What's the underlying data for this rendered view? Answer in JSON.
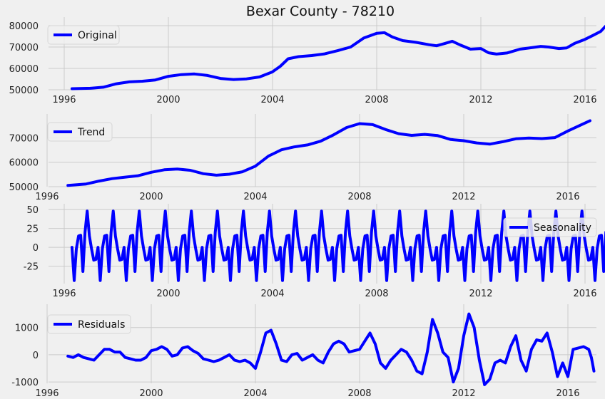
{
  "chart_data": [
    {
      "type": "line",
      "title": "Bexar County - 78210",
      "series": [
        {
          "name": "Original",
          "color": "#0000ff"
        }
      ],
      "legend": "top-left",
      "grid": true,
      "xlim": [
        1995.4,
        2017.0
      ],
      "ylim": [
        50000,
        82000
      ],
      "xticks": [
        1996,
        2000,
        2004,
        2008,
        2012,
        2016
      ],
      "yticks": [
        50000,
        60000,
        70000,
        80000
      ],
      "points": [
        [
          1996.3,
          50500
        ],
        [
          1997.0,
          50700
        ],
        [
          1997.5,
          51200
        ],
        [
          1998.0,
          52800
        ],
        [
          1998.5,
          53700
        ],
        [
          1999.0,
          54000
        ],
        [
          1999.5,
          54600
        ],
        [
          2000.0,
          56300
        ],
        [
          2000.5,
          57100
        ],
        [
          2001.0,
          57400
        ],
        [
          2001.5,
          56700
        ],
        [
          2002.0,
          55300
        ],
        [
          2002.5,
          54800
        ],
        [
          2003.0,
          55100
        ],
        [
          2003.5,
          56000
        ],
        [
          2004.0,
          58400
        ],
        [
          2004.3,
          61000
        ],
        [
          2004.6,
          64500
        ],
        [
          2005.0,
          65500
        ],
        [
          2005.5,
          66000
        ],
        [
          2006.0,
          66800
        ],
        [
          2006.5,
          68300
        ],
        [
          2007.0,
          70000
        ],
        [
          2007.5,
          74200
        ],
        [
          2008.0,
          76400
        ],
        [
          2008.3,
          76700
        ],
        [
          2008.6,
          74700
        ],
        [
          2009.0,
          73000
        ],
        [
          2009.5,
          72200
        ],
        [
          2010.0,
          71100
        ],
        [
          2010.3,
          70600
        ],
        [
          2010.6,
          71600
        ],
        [
          2010.9,
          72700
        ],
        [
          2011.2,
          71000
        ],
        [
          2011.6,
          69000
        ],
        [
          2012.0,
          69300
        ],
        [
          2012.3,
          67300
        ],
        [
          2012.6,
          66700
        ],
        [
          2013.0,
          67200
        ],
        [
          2013.5,
          69000
        ],
        [
          2014.0,
          69800
        ],
        [
          2014.3,
          70300
        ],
        [
          2014.6,
          70000
        ],
        [
          2015.0,
          69300
        ],
        [
          2015.3,
          69600
        ],
        [
          2015.6,
          71700
        ],
        [
          2016.0,
          73600
        ],
        [
          2016.3,
          75400
        ],
        [
          2016.6,
          77300
        ],
        [
          2016.9,
          81200
        ]
      ]
    },
    {
      "type": "line",
      "title": "",
      "series": [
        {
          "name": "Trend",
          "color": "#0000ff"
        }
      ],
      "legend": "top-left",
      "grid": true,
      "xlim": [
        1996.0,
        2017.0
      ],
      "ylim": [
        50000,
        78000
      ],
      "xticks": [
        1996,
        2000,
        2004,
        2008,
        2012,
        2016
      ],
      "yticks": [
        50000,
        60000,
        70000
      ],
      "points": [
        [
          1996.8,
          50500
        ],
        [
          1997.5,
          51100
        ],
        [
          1998.0,
          52300
        ],
        [
          1998.5,
          53300
        ],
        [
          1999.0,
          53900
        ],
        [
          1999.5,
          54500
        ],
        [
          2000.0,
          55900
        ],
        [
          2000.5,
          56900
        ],
        [
          2001.0,
          57200
        ],
        [
          2001.5,
          56700
        ],
        [
          2002.0,
          55300
        ],
        [
          2002.5,
          54700
        ],
        [
          2003.0,
          55100
        ],
        [
          2003.5,
          56100
        ],
        [
          2004.0,
          58400
        ],
        [
          2004.5,
          62500
        ],
        [
          2005.0,
          65100
        ],
        [
          2005.5,
          66300
        ],
        [
          2006.0,
          67100
        ],
        [
          2006.5,
          68600
        ],
        [
          2007.0,
          71200
        ],
        [
          2007.5,
          74200
        ],
        [
          2008.0,
          75800
        ],
        [
          2008.5,
          75400
        ],
        [
          2009.0,
          73400
        ],
        [
          2009.5,
          71700
        ],
        [
          2010.0,
          71000
        ],
        [
          2010.5,
          71400
        ],
        [
          2011.0,
          70900
        ],
        [
          2011.5,
          69300
        ],
        [
          2012.0,
          68800
        ],
        [
          2012.5,
          67900
        ],
        [
          2013.0,
          67400
        ],
        [
          2013.5,
          68400
        ],
        [
          2014.0,
          69600
        ],
        [
          2014.5,
          69900
        ],
        [
          2015.0,
          69700
        ],
        [
          2015.5,
          70100
        ],
        [
          2016.0,
          72800
        ],
        [
          2016.5,
          75300
        ],
        [
          2016.85,
          77000
        ]
      ]
    },
    {
      "type": "line",
      "title": "",
      "series": [
        {
          "name": "Seasonality",
          "color": "#0000ff"
        }
      ],
      "legend": "top-right",
      "grid": true,
      "xlim": [
        1995.4,
        2017.0
      ],
      "ylim": [
        -48,
        52
      ],
      "xticks": [
        1996,
        2000,
        2004,
        2008,
        2012,
        2016
      ],
      "yticks": [
        -25,
        0,
        25,
        50
      ],
      "start_year": 1996.3,
      "end_year": 2016.8,
      "monthly_pattern": [
        0,
        -44,
        -2,
        15,
        16,
        -32,
        20,
        48,
        15,
        -2,
        -17,
        -16
      ]
    },
    {
      "type": "line",
      "title": "",
      "series": [
        {
          "name": "Residuals",
          "color": "#0000ff"
        }
      ],
      "legend": "top-left",
      "grid": true,
      "xlim": [
        1996.0,
        2017.0
      ],
      "ylim": [
        -1050,
        1700
      ],
      "xticks": [
        1996,
        2000,
        2004,
        2008,
        2012,
        2016
      ],
      "yticks": [
        -1000,
        0,
        1000
      ],
      "points": [
        [
          1996.8,
          -50
        ],
        [
          1997.0,
          -100
        ],
        [
          1997.2,
          0
        ],
        [
          1997.4,
          -100
        ],
        [
          1997.6,
          -150
        ],
        [
          1997.8,
          -200
        ],
        [
          1998.0,
          0
        ],
        [
          1998.2,
          200
        ],
        [
          1998.4,
          200
        ],
        [
          1998.6,
          100
        ],
        [
          1998.8,
          100
        ],
        [
          1999.0,
          -100
        ],
        [
          1999.2,
          -150
        ],
        [
          1999.4,
          -200
        ],
        [
          1999.6,
          -200
        ],
        [
          1999.8,
          -100
        ],
        [
          2000.0,
          150
        ],
        [
          2000.2,
          200
        ],
        [
          2000.4,
          300
        ],
        [
          2000.6,
          200
        ],
        [
          2000.8,
          -50
        ],
        [
          2001.0,
          0
        ],
        [
          2001.2,
          250
        ],
        [
          2001.4,
          300
        ],
        [
          2001.6,
          150
        ],
        [
          2001.8,
          50
        ],
        [
          2002.0,
          -150
        ],
        [
          2002.2,
          -200
        ],
        [
          2002.4,
          -250
        ],
        [
          2002.6,
          -200
        ],
        [
          2002.8,
          -100
        ],
        [
          2003.0,
          0
        ],
        [
          2003.2,
          -200
        ],
        [
          2003.4,
          -250
        ],
        [
          2003.6,
          -200
        ],
        [
          2003.8,
          -300
        ],
        [
          2004.0,
          -500
        ],
        [
          2004.2,
          100
        ],
        [
          2004.4,
          800
        ],
        [
          2004.6,
          900
        ],
        [
          2004.8,
          400
        ],
        [
          2005.0,
          -200
        ],
        [
          2005.2,
          -250
        ],
        [
          2005.4,
          0
        ],
        [
          2005.6,
          50
        ],
        [
          2005.8,
          -200
        ],
        [
          2006.0,
          -100
        ],
        [
          2006.2,
          0
        ],
        [
          2006.4,
          -200
        ],
        [
          2006.6,
          -300
        ],
        [
          2006.8,
          100
        ],
        [
          2007.0,
          400
        ],
        [
          2007.2,
          500
        ],
        [
          2007.4,
          400
        ],
        [
          2007.6,
          100
        ],
        [
          2007.8,
          150
        ],
        [
          2008.0,
          200
        ],
        [
          2008.2,
          500
        ],
        [
          2008.4,
          800
        ],
        [
          2008.6,
          400
        ],
        [
          2008.8,
          -300
        ],
        [
          2009.0,
          -500
        ],
        [
          2009.2,
          -200
        ],
        [
          2009.4,
          0
        ],
        [
          2009.6,
          200
        ],
        [
          2009.8,
          100
        ],
        [
          2010.0,
          -200
        ],
        [
          2010.2,
          -600
        ],
        [
          2010.4,
          -700
        ],
        [
          2010.6,
          100
        ],
        [
          2010.8,
          1300
        ],
        [
          2011.0,
          800
        ],
        [
          2011.2,
          100
        ],
        [
          2011.4,
          -100
        ],
        [
          2011.6,
          -1000
        ],
        [
          2011.8,
          -500
        ],
        [
          2012.0,
          700
        ],
        [
          2012.2,
          1500
        ],
        [
          2012.4,
          1000
        ],
        [
          2012.6,
          -200
        ],
        [
          2012.8,
          -1100
        ],
        [
          2013.0,
          -900
        ],
        [
          2013.2,
          -300
        ],
        [
          2013.4,
          -200
        ],
        [
          2013.6,
          -300
        ],
        [
          2013.8,
          300
        ],
        [
          2014.0,
          700
        ],
        [
          2014.2,
          -200
        ],
        [
          2014.4,
          -600
        ],
        [
          2014.6,
          200
        ],
        [
          2014.8,
          550
        ],
        [
          2015.0,
          500
        ],
        [
          2015.2,
          800
        ],
        [
          2015.4,
          100
        ],
        [
          2015.6,
          -800
        ],
        [
          2015.8,
          -300
        ],
        [
          2016.0,
          -800
        ],
        [
          2016.2,
          200
        ],
        [
          2016.4,
          250
        ],
        [
          2016.6,
          300
        ],
        [
          2016.8,
          200
        ],
        [
          2016.9,
          -100
        ],
        [
          2017.0,
          -600
        ]
      ]
    }
  ]
}
